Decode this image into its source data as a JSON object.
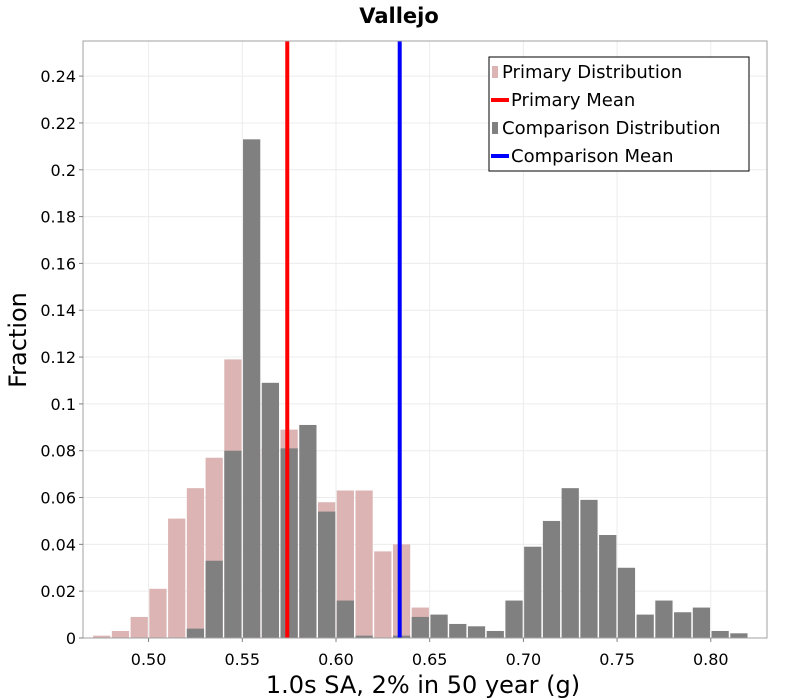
{
  "chart_data": {
    "type": "bar",
    "title": "Vallejo",
    "xlabel": "1.0s SA, 2% in 50 year (g)",
    "ylabel": "Fraction",
    "xlim": [
      0.465,
      0.83
    ],
    "ylim": [
      0,
      0.255
    ],
    "bin_width": 0.01,
    "x_ticks": [
      0.5,
      0.55,
      0.6,
      0.65,
      0.7,
      0.75,
      0.8
    ],
    "x_tick_labels": [
      "0.50",
      "0.55",
      "0.60",
      "0.65",
      "0.70",
      "0.75",
      "0.80"
    ],
    "y_ticks": [
      0,
      0.02,
      0.04,
      0.06,
      0.08,
      0.1,
      0.12,
      0.14,
      0.16,
      0.18,
      0.2,
      0.22,
      0.24
    ],
    "y_tick_labels": [
      "0",
      "0.02",
      "0.04",
      "0.06",
      "0.08",
      "0.1",
      "0.12",
      "0.14",
      "0.16",
      "0.18",
      "0.2",
      "0.22",
      "0.24"
    ],
    "grid": true,
    "legend_position": "top-right",
    "series": [
      {
        "name": "Primary Distribution",
        "kind": "histogram",
        "color": "#dcb4b4",
        "bin_centers": [
          0.475,
          0.485,
          0.495,
          0.505,
          0.515,
          0.525,
          0.535,
          0.545,
          0.555,
          0.565,
          0.575,
          0.585,
          0.595,
          0.605,
          0.615,
          0.625,
          0.635,
          0.645,
          0.655
        ],
        "values": [
          0.001,
          0.003,
          0.009,
          0.021,
          0.051,
          0.064,
          0.077,
          0.119,
          0.079,
          0.081,
          0.089,
          0.067,
          0.058,
          0.063,
          0.063,
          0.037,
          0.04,
          0.013,
          0.008
        ]
      },
      {
        "name": "Comparison Distribution",
        "kind": "histogram",
        "color": "#808080",
        "bin_centers": [
          0.525,
          0.535,
          0.545,
          0.555,
          0.565,
          0.575,
          0.585,
          0.595,
          0.605,
          0.615,
          0.625,
          0.635,
          0.645,
          0.655,
          0.665,
          0.675,
          0.685,
          0.695,
          0.705,
          0.715,
          0.725,
          0.735,
          0.745,
          0.755,
          0.765,
          0.775,
          0.785,
          0.795,
          0.805,
          0.815
        ],
        "values": [
          0.004,
          0.033,
          0.08,
          0.213,
          0.109,
          0.081,
          0.091,
          0.054,
          0.016,
          0.001,
          0.0,
          0.001,
          0.009,
          0.01,
          0.006,
          0.005,
          0.003,
          0.016,
          0.039,
          0.05,
          0.064,
          0.059,
          0.044,
          0.03,
          0.01,
          0.016,
          0.011,
          0.013,
          0.003,
          0.002
        ]
      },
      {
        "name": "Primary Mean",
        "kind": "vline",
        "color": "#ff0000",
        "x": 0.574
      },
      {
        "name": "Comparison Mean",
        "kind": "vline",
        "color": "#0000ff",
        "x": 0.634
      }
    ],
    "legend": [
      {
        "label": "Primary Distribution",
        "symbol": "rect",
        "color": "#dcb4b4"
      },
      {
        "label": "Primary Mean",
        "symbol": "line",
        "color": "#ff0000"
      },
      {
        "label": "Comparison Distribution",
        "symbol": "rect",
        "color": "#808080"
      },
      {
        "label": "Comparison Mean",
        "symbol": "line",
        "color": "#0000ff"
      }
    ]
  }
}
